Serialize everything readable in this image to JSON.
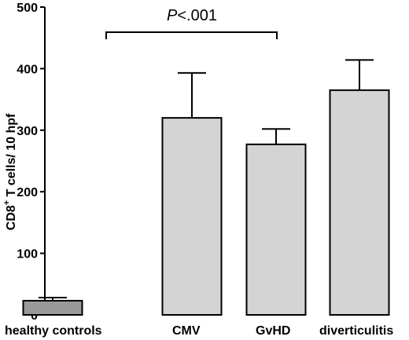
{
  "chart_data": {
    "type": "bar",
    "title": "",
    "xlabel": "",
    "ylabel": {
      "prefix": "CD8",
      "superscript": "+",
      "suffix": " T cells/ 10 hpf"
    },
    "categories": [
      "healthy controls",
      "CMV",
      "GvHD",
      "diverticulitis"
    ],
    "values": [
      23,
      320,
      277,
      365
    ],
    "error_upper": [
      5,
      73,
      25,
      49
    ],
    "ylim": [
      0,
      500
    ],
    "yticks": [
      0,
      100,
      200,
      300,
      400,
      500
    ],
    "bar_colors": [
      "#999999",
      "#d4d4d4",
      "#d4d4d4",
      "#d4d4d4"
    ],
    "grid": false,
    "annotation": {
      "from_category": 0,
      "to_category": 2,
      "p_italic": "P",
      "p_rest": "<.001"
    }
  }
}
